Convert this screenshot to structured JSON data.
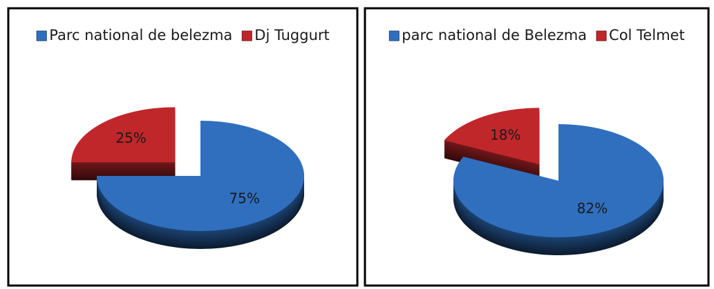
{
  "chart_data": [
    {
      "type": "pie",
      "categories": [
        "Parc national de belezma",
        "Dj Tuggurt"
      ],
      "values": [
        75,
        25
      ],
      "value_labels": [
        "75%",
        "25%"
      ],
      "colors": [
        "#2f6fbe",
        "#c0272b"
      ]
    },
    {
      "type": "pie",
      "categories": [
        "parc national de Belezma",
        "Col Telmet"
      ],
      "values": [
        82,
        18
      ],
      "value_labels": [
        "82%",
        "18%"
      ],
      "colors": [
        "#2f6fbe",
        "#c0272b"
      ]
    }
  ]
}
